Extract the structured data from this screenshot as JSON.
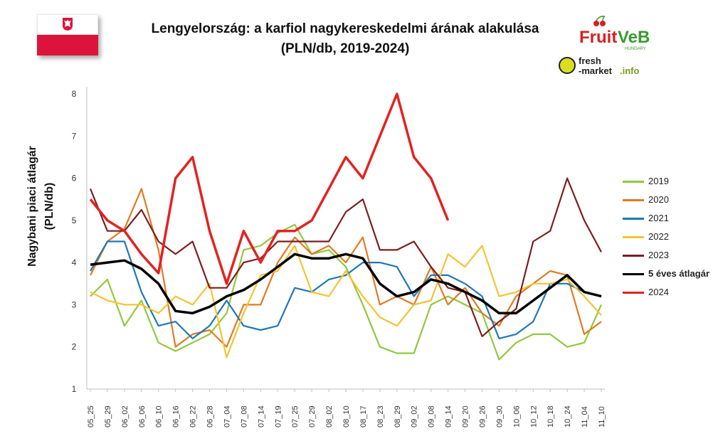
{
  "chart_data": {
    "type": "line",
    "title": "Lengyelország: a karfiol nagykereskedelmi árának alakulása",
    "subtitle": "(PLN/db, 2019-2024)",
    "ylabel_line1": "Nagybani piaci átlagár",
    "ylabel_line2": "(PLN/db)",
    "xlabel": "",
    "ylim": [
      1,
      8
    ],
    "yticks": [
      "1",
      "2",
      "3",
      "4",
      "5",
      "6",
      "7",
      "8"
    ],
    "grid": false,
    "legend_position": "right",
    "categories": [
      "05_25",
      "05_29",
      "06_02",
      "06_06",
      "06_10",
      "06_16",
      "06_22",
      "06_28",
      "07_04",
      "07_08",
      "07_14",
      "07_19",
      "07_25",
      "07_29",
      "08_02",
      "08_10",
      "08_17",
      "08_23",
      "08_29",
      "09_02",
      "09_08",
      "09_14",
      "09_20",
      "09_26",
      "09_30",
      "10_06",
      "10_12",
      "10_18",
      "10_24",
      "11_04",
      "11_10"
    ],
    "series": [
      {
        "name": "2019",
        "color": "#92c83e",
        "width": 2.2,
        "values": [
          3.2,
          3.6,
          2.5,
          3.1,
          2.1,
          1.9,
          2.1,
          2.3,
          2.8,
          4.3,
          4.4,
          4.7,
          4.9,
          4.2,
          4.3,
          3.9,
          3.0,
          2.0,
          1.85,
          1.85,
          3.0,
          3.2,
          3.0,
          2.8,
          1.7,
          2.1,
          2.3,
          2.3,
          2.0,
          2.1,
          3.0
        ]
      },
      {
        "name": "2020",
        "color": "#e07a21",
        "width": 2.2,
        "values": [
          3.7,
          4.5,
          4.8,
          5.75,
          4.3,
          2.0,
          2.3,
          2.4,
          2.0,
          3.0,
          3.0,
          4.0,
          4.6,
          4.2,
          4.4,
          4.0,
          4.6,
          3.0,
          3.2,
          3.0,
          3.9,
          3.0,
          3.4,
          2.8,
          2.5,
          3.2,
          3.5,
          3.8,
          3.7,
          2.3,
          2.6
        ]
      },
      {
        "name": "2021",
        "color": "#1f78b4",
        "width": 2.2,
        "values": [
          3.8,
          4.5,
          4.5,
          3.3,
          2.5,
          2.6,
          2.2,
          2.5,
          3.1,
          2.5,
          2.4,
          2.5,
          3.4,
          3.3,
          3.6,
          3.7,
          4.0,
          4.0,
          3.9,
          3.2,
          3.7,
          3.7,
          3.5,
          3.2,
          2.2,
          2.3,
          2.6,
          3.5,
          3.5,
          3.3,
          3.2
        ]
      },
      {
        "name": "2022",
        "color": "#f4c430",
        "width": 2.2,
        "values": [
          3.3,
          3.1,
          3.0,
          3.0,
          2.8,
          3.2,
          3.0,
          3.5,
          1.75,
          2.8,
          3.7,
          3.8,
          4.4,
          3.3,
          3.2,
          3.8,
          3.2,
          2.7,
          2.5,
          3.0,
          3.1,
          4.2,
          3.9,
          4.4,
          3.2,
          3.3,
          3.5,
          3.5,
          3.6,
          3.2,
          2.75
        ]
      },
      {
        "name": "2023",
        "color": "#7b1f1f",
        "width": 2.2,
        "values": [
          5.75,
          4.75,
          4.75,
          5.25,
          4.5,
          4.2,
          4.5,
          3.4,
          3.4,
          4.0,
          4.1,
          4.5,
          4.5,
          4.5,
          4.5,
          5.2,
          5.5,
          4.3,
          4.3,
          4.5,
          3.9,
          3.4,
          3.3,
          2.25,
          2.6,
          2.9,
          4.5,
          4.75,
          6.0,
          5.0,
          4.25
        ]
      },
      {
        "name": "5 éves átlagár",
        "color": "#000000",
        "width": 3.5,
        "values": [
          3.95,
          4.0,
          4.05,
          3.85,
          3.5,
          2.85,
          2.8,
          2.95,
          3.2,
          3.35,
          3.6,
          3.9,
          4.2,
          4.1,
          4.1,
          4.2,
          4.1,
          3.5,
          3.2,
          3.3,
          3.6,
          3.5,
          3.3,
          3.1,
          2.8,
          2.8,
          3.1,
          3.4,
          3.7,
          3.3,
          3.2
        ]
      },
      {
        "name": "2024",
        "color": "#e32222",
        "width": 3.5,
        "values": [
          5.5,
          5.0,
          4.75,
          4.2,
          3.75,
          6.0,
          6.5,
          4.75,
          3.5,
          4.75,
          4.0,
          4.75,
          4.75,
          5.0,
          5.75,
          6.5,
          6.0,
          7.0,
          8.0,
          6.5,
          6.0,
          5.0,
          null,
          null,
          null,
          null,
          null,
          null,
          null,
          null,
          null
        ]
      }
    ]
  }
}
